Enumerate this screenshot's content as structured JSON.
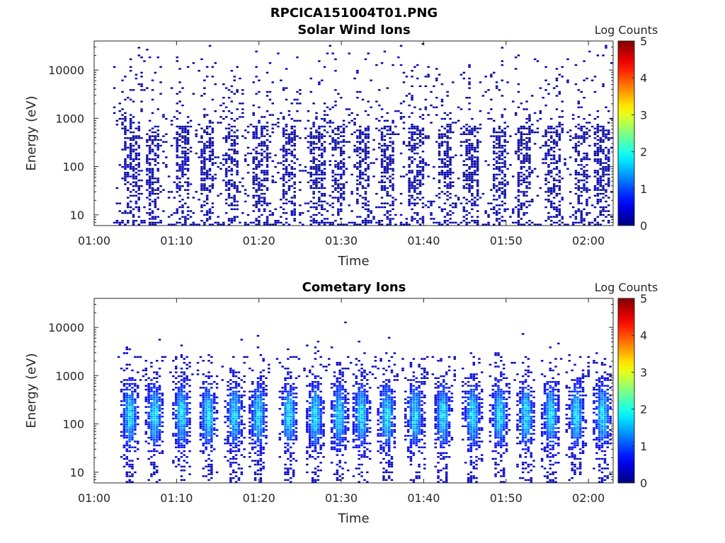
{
  "figure": {
    "title": "RPCICA151004T01.PNG"
  },
  "colorbar": {
    "label": "Log Counts",
    "ticks": [
      "0",
      "1",
      "2",
      "3",
      "4",
      "5"
    ],
    "range": [
      0,
      5
    ],
    "colormap": "jet"
  },
  "chart_data": [
    {
      "type": "heatmap",
      "title": "Solar Wind Ions",
      "xlabel": "Time",
      "ylabel": "Energy (eV)",
      "x_ticks": [
        "01:00",
        "01:10",
        "01:20",
        "01:30",
        "01:40",
        "01:50",
        "02:00"
      ],
      "x_range_minutes": [
        0,
        63
      ],
      "y_ticks": [
        "10",
        "100",
        "1000",
        "10000"
      ],
      "y_scale": "log",
      "y_range": [
        6,
        40000
      ],
      "data_start_minute": 2.3,
      "value_range_observed": [
        0,
        0.4
      ],
      "repeating_bursts_minutes": [
        4.5,
        7,
        10.5,
        13.5,
        16.5,
        20,
        23.5,
        27,
        29.5,
        32.5,
        35.5,
        39,
        42.5,
        45.5,
        49,
        52,
        55.5,
        59,
        61.5
      ],
      "burst_energy_range_eV": [
        30,
        700
      ]
    },
    {
      "type": "heatmap",
      "title": "Cometary Ions",
      "xlabel": "Time",
      "ylabel": "Energy (eV)",
      "x_ticks": [
        "01:00",
        "01:10",
        "01:20",
        "01:30",
        "01:40",
        "01:50",
        "02:00"
      ],
      "x_range_minutes": [
        0,
        63
      ],
      "y_ticks": [
        "10",
        "100",
        "1000",
        "10000"
      ],
      "y_scale": "log",
      "y_range": [
        6,
        40000
      ],
      "data_start_minute": 2.5,
      "value_range_observed": [
        0,
        1.8
      ],
      "burst_centers_minutes": [
        4.2,
        7.2,
        10.5,
        13.7,
        16.9,
        19.8,
        23.5,
        26.7,
        29.6,
        32.3,
        35.4,
        38.8,
        42.2,
        45.8,
        49.1,
        52.3,
        55.3,
        58.4,
        61.6
      ],
      "burst_energy_range_eV": [
        20,
        1500
      ],
      "burst_peak_energy_eV": 150
    }
  ]
}
